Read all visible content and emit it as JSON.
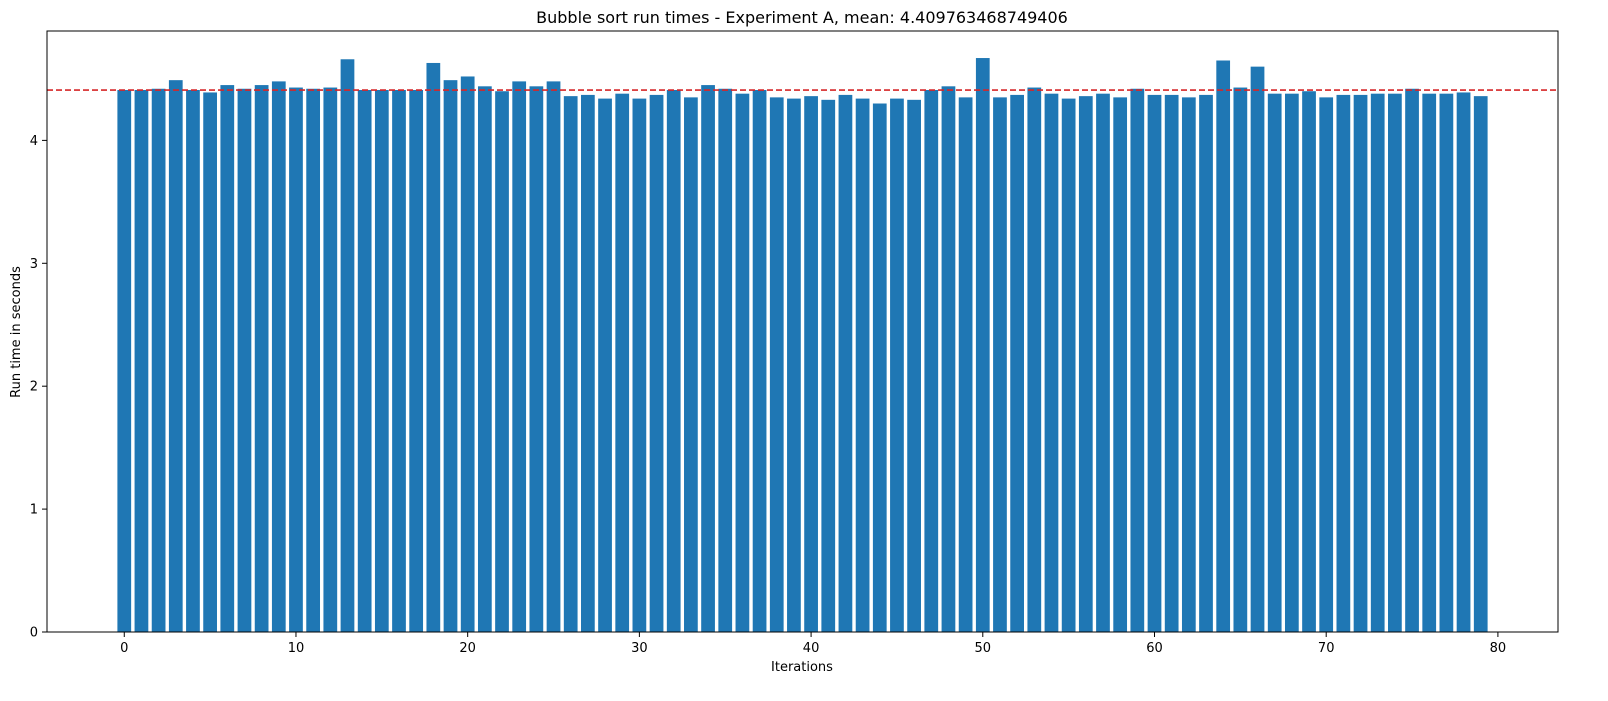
{
  "chart_data": {
    "type": "bar",
    "title": "Bubble sort run times - Experiment A, mean: 4.409763468749406",
    "xlabel": "Iterations",
    "ylabel": "Run time in seconds",
    "x": [
      0,
      1,
      2,
      3,
      4,
      5,
      6,
      7,
      8,
      9,
      10,
      11,
      12,
      13,
      14,
      15,
      16,
      17,
      18,
      19,
      20,
      21,
      22,
      23,
      24,
      25,
      26,
      27,
      28,
      29,
      30,
      31,
      32,
      33,
      34,
      35,
      36,
      37,
      38,
      39,
      40,
      41,
      42,
      43,
      44,
      45,
      46,
      47,
      48,
      49,
      50,
      51,
      52,
      53,
      54,
      55,
      56,
      57,
      58,
      59,
      60,
      61,
      62,
      63,
      64,
      65,
      66,
      67,
      68,
      69,
      70,
      71,
      72,
      73,
      74,
      75,
      76,
      77,
      78,
      79
    ],
    "values": [
      4.41,
      4.41,
      4.42,
      4.49,
      4.41,
      4.39,
      4.45,
      4.42,
      4.45,
      4.48,
      4.43,
      4.42,
      4.43,
      4.66,
      4.41,
      4.41,
      4.41,
      4.41,
      4.63,
      4.49,
      4.52,
      4.44,
      4.4,
      4.48,
      4.44,
      4.48,
      4.36,
      4.37,
      4.34,
      4.38,
      4.34,
      4.37,
      4.41,
      4.35,
      4.45,
      4.42,
      4.38,
      4.41,
      4.35,
      4.34,
      4.36,
      4.33,
      4.37,
      4.34,
      4.3,
      4.34,
      4.33,
      4.41,
      4.44,
      4.35,
      4.67,
      4.35,
      4.37,
      4.43,
      4.38,
      4.34,
      4.36,
      4.38,
      4.35,
      4.42,
      4.37,
      4.37,
      4.35,
      4.37,
      4.65,
      4.43,
      4.6,
      4.38,
      4.38,
      4.4,
      4.35,
      4.37,
      4.37,
      4.38,
      4.38,
      4.42,
      4.38,
      4.38,
      4.39,
      4.36
    ],
    "mean": 4.409763468749406,
    "xlim": [
      -4.5,
      83.5
    ],
    "ylim": [
      0,
      4.89
    ],
    "xticks": [
      0,
      10,
      20,
      30,
      40,
      50,
      60,
      70,
      80
    ],
    "yticks": [
      0,
      1,
      2,
      3,
      4
    ],
    "bar_color": "#1f77b4",
    "mean_line_color": "#d62728",
    "grid": false,
    "legend": "none"
  }
}
